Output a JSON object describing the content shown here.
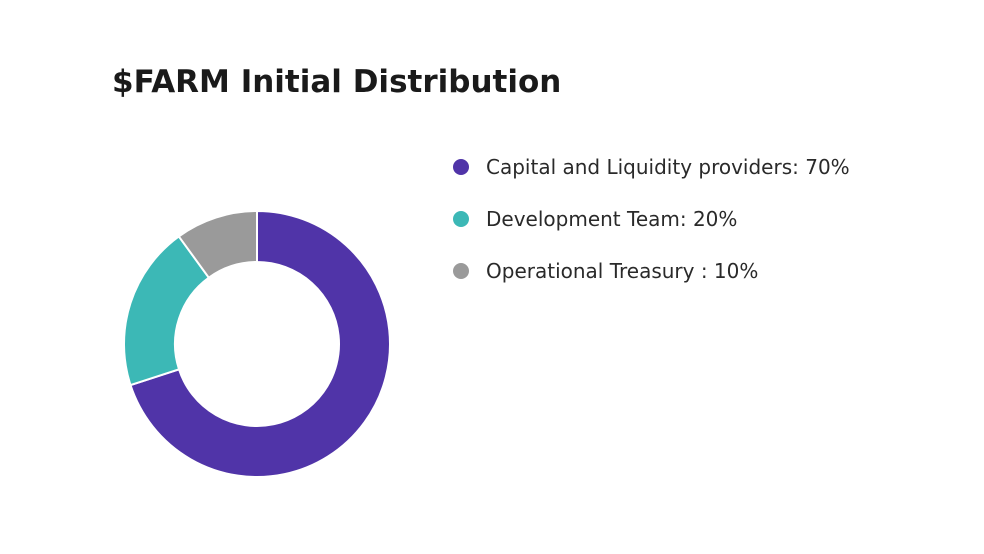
{
  "chart_data": {
    "type": "pie",
    "title": "$FARM Initial Distribution",
    "donut": true,
    "legend_position": "right",
    "slices": [
      {
        "label": "Capital and Liquidity providers: 70%",
        "value": 70,
        "color": "#5034a8"
      },
      {
        "label": "Development Team: 20%",
        "value": 20,
        "color": "#3cb8b6"
      },
      {
        "label": "Operational Treasury : 10%",
        "value": 10,
        "color": "#9a9a9a"
      }
    ]
  }
}
